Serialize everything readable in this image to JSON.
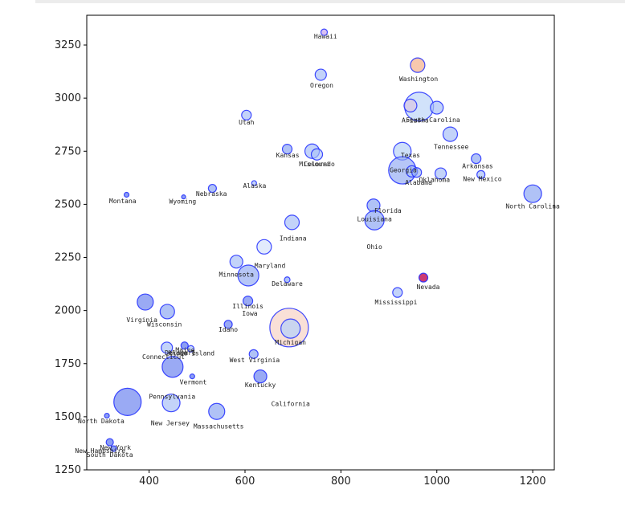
{
  "colors": {
    "axis": "#000000",
    "bubble_stroke": "#1e2bff"
  },
  "chart_data": {
    "type": "scatter",
    "title": "",
    "xlabel": "",
    "ylabel": "",
    "xlim": [
      270,
      1245
    ],
    "ylim": [
      1250,
      3390
    ],
    "xticks": [
      400,
      600,
      800,
      1000,
      1200
    ],
    "yticks": [
      1250,
      1500,
      1750,
      2000,
      2250,
      2500,
      2750,
      3000,
      3250
    ],
    "grid": false,
    "points": [
      {
        "x": 765,
        "y": 3310,
        "r": 4,
        "fill": "#c9a6ee",
        "opacity": 0.7
      },
      {
        "x": 960,
        "y": 3155,
        "r": 9,
        "fill": "#f4b08a",
        "opacity": 0.7
      },
      {
        "x": 758,
        "y": 3110,
        "r": 7,
        "fill": "#a9c1f7",
        "opacity": 0.7
      },
      {
        "x": 963,
        "y": 2960,
        "r": 18,
        "fill": "#b8d2f7",
        "opacity": 0.65
      },
      {
        "x": 945,
        "y": 2965,
        "r": 8,
        "fill": "#d8c1e0",
        "opacity": 0.6
      },
      {
        "x": 1000,
        "y": 2955,
        "r": 8,
        "fill": "#a9c1f7",
        "opacity": 0.7
      },
      {
        "x": 603,
        "y": 2920,
        "r": 6,
        "fill": "#a9c1f7",
        "opacity": 0.7
      },
      {
        "x": 1028,
        "y": 2830,
        "r": 9,
        "fill": "#a9c1f7",
        "opacity": 0.7
      },
      {
        "x": 688,
        "y": 2760,
        "r": 6,
        "fill": "#8fa8f2",
        "opacity": 0.7
      },
      {
        "x": 740,
        "y": 2750,
        "r": 9,
        "fill": "#a9c1f7",
        "opacity": 0.7
      },
      {
        "x": 750,
        "y": 2735,
        "r": 7,
        "fill": "#a9c1f7",
        "opacity": 0.6
      },
      {
        "x": 928,
        "y": 2750,
        "r": 11,
        "fill": "#b8d2f7",
        "opacity": 0.7
      },
      {
        "x": 1082,
        "y": 2715,
        "r": 6,
        "fill": "#8fa8f2",
        "opacity": 0.7
      },
      {
        "x": 928,
        "y": 2660,
        "r": 17,
        "fill": "#8fa8f2",
        "opacity": 0.65
      },
      {
        "x": 948,
        "y": 2655,
        "r": 7,
        "fill": "#a9c1f7",
        "opacity": 0.6
      },
      {
        "x": 958,
        "y": 2650,
        "r": 6,
        "fill": "#8fa8f2",
        "opacity": 0.6
      },
      {
        "x": 1008,
        "y": 2645,
        "r": 7,
        "fill": "#a9c1f7",
        "opacity": 0.7
      },
      {
        "x": 1092,
        "y": 2640,
        "r": 5,
        "fill": "#a9c1f7",
        "opacity": 0.7
      },
      {
        "x": 619,
        "y": 2600,
        "r": 3,
        "fill": "#a9c1f7",
        "opacity": 0.7
      },
      {
        "x": 532,
        "y": 2575,
        "r": 5,
        "fill": "#8fa8f2",
        "opacity": 0.7
      },
      {
        "x": 1200,
        "y": 2550,
        "r": 11,
        "fill": "#8fa8f2",
        "opacity": 0.7
      },
      {
        "x": 353,
        "y": 2545,
        "r": 3,
        "fill": "#6f86ef",
        "opacity": 0.8
      },
      {
        "x": 472,
        "y": 2535,
        "r": 2.5,
        "fill": "#6f86ef",
        "opacity": 0.8
      },
      {
        "x": 868,
        "y": 2495,
        "r": 8,
        "fill": "#8fa8f2",
        "opacity": 0.7
      },
      {
        "x": 870,
        "y": 2425,
        "r": 12,
        "fill": "#8fa8f2",
        "opacity": 0.7
      },
      {
        "x": 698,
        "y": 2415,
        "r": 9,
        "fill": "#a9c1f7",
        "opacity": 0.7
      },
      {
        "x": 640,
        "y": 2300,
        "r": 9,
        "fill": "#d6e2fb",
        "opacity": 0.7
      },
      {
        "x": 582,
        "y": 2230,
        "r": 8,
        "fill": "#a9c1f7",
        "opacity": 0.7
      },
      {
        "x": 607,
        "y": 2165,
        "r": 13,
        "fill": "#8fa8f2",
        "opacity": 0.65
      },
      {
        "x": 688,
        "y": 2145,
        "r": 3.5,
        "fill": "#8fa8f2",
        "opacity": 0.7
      },
      {
        "x": 972,
        "y": 2155,
        "r": 5.5,
        "fill": "#c2185b",
        "opacity": 0.85
      },
      {
        "x": 918,
        "y": 2085,
        "r": 6,
        "fill": "#a9c1f7",
        "opacity": 0.7
      },
      {
        "x": 392,
        "y": 2040,
        "r": 10,
        "fill": "#6f86ef",
        "opacity": 0.7
      },
      {
        "x": 606,
        "y": 2045,
        "r": 6,
        "fill": "#6f86ef",
        "opacity": 0.7
      },
      {
        "x": 438,
        "y": 1995,
        "r": 9,
        "fill": "#8fa8f2",
        "opacity": 0.7
      },
      {
        "x": 692,
        "y": 1920,
        "r": 24,
        "fill": "#f6d3c6",
        "opacity": 0.7
      },
      {
        "x": 695,
        "y": 1915,
        "r": 12,
        "fill": "#b8d2f7",
        "opacity": 0.75
      },
      {
        "x": 565,
        "y": 1935,
        "r": 5,
        "fill": "#6f86ef",
        "opacity": 0.7
      },
      {
        "x": 437,
        "y": 1825,
        "r": 7,
        "fill": "#a9c1f7",
        "opacity": 0.7
      },
      {
        "x": 474,
        "y": 1835,
        "r": 4.5,
        "fill": "#6f86ef",
        "opacity": 0.8
      },
      {
        "x": 487,
        "y": 1820,
        "r": 4,
        "fill": "#a9c1f7",
        "opacity": 0.7
      },
      {
        "x": 618,
        "y": 1795,
        "r": 5.5,
        "fill": "#8fa8f2",
        "opacity": 0.7
      },
      {
        "x": 449,
        "y": 1735,
        "r": 13,
        "fill": "#6f86ef",
        "opacity": 0.7
      },
      {
        "x": 490,
        "y": 1690,
        "r": 3,
        "fill": "#6f86ef",
        "opacity": 0.8
      },
      {
        "x": 632,
        "y": 1690,
        "r": 8,
        "fill": "#6f86ef",
        "opacity": 0.7
      },
      {
        "x": 355,
        "y": 1570,
        "r": 17,
        "fill": "#6f86ef",
        "opacity": 0.7
      },
      {
        "x": 446,
        "y": 1565,
        "r": 11,
        "fill": "#a9c1f7",
        "opacity": 0.7
      },
      {
        "x": 541,
        "y": 1525,
        "r": 10,
        "fill": "#8fa8f2",
        "opacity": 0.7
      },
      {
        "x": 312,
        "y": 1505,
        "r": 3,
        "fill": "#6f86ef",
        "opacity": 0.8
      },
      {
        "x": 318,
        "y": 1380,
        "r": 4.5,
        "fill": "#6f86ef",
        "opacity": 0.8
      },
      {
        "x": 326,
        "y": 1350,
        "r": 3.5,
        "fill": "#6f86ef",
        "opacity": 0.8
      }
    ],
    "labels": [
      {
        "text": "Hawaii",
        "x": 768,
        "y": 3280
      },
      {
        "text": "Washington",
        "x": 962,
        "y": 3080
      },
      {
        "text": "Oregon",
        "x": 760,
        "y": 3050
      },
      {
        "text": "Utah",
        "x": 603,
        "y": 2875
      },
      {
        "text": "Arizona",
        "x": 955,
        "y": 2885
      },
      {
        "text": "South Carolina",
        "x": 992,
        "y": 2888
      },
      {
        "text": "Tennessee",
        "x": 1030,
        "y": 2760
      },
      {
        "text": "Kansas",
        "x": 689,
        "y": 2720
      },
      {
        "text": "Colorado",
        "x": 755,
        "y": 2680
      },
      {
        "text": "Missouri",
        "x": 745,
        "y": 2680
      },
      {
        "text": "Texas",
        "x": 945,
        "y": 2720
      },
      {
        "text": "Arkansas",
        "x": 1085,
        "y": 2670
      },
      {
        "text": "Georgia",
        "x": 930,
        "y": 2650
      },
      {
        "text": "Oklahoma",
        "x": 995,
        "y": 2605
      },
      {
        "text": "New Mexico",
        "x": 1095,
        "y": 2610
      },
      {
        "text": "Alabama",
        "x": 962,
        "y": 2592
      },
      {
        "text": "Alaska",
        "x": 620,
        "y": 2578
      },
      {
        "text": "Nebraska",
        "x": 530,
        "y": 2540
      },
      {
        "text": "North Carolina",
        "x": 1200,
        "y": 2480
      },
      {
        "text": "Montana",
        "x": 345,
        "y": 2505
      },
      {
        "text": "Wyoming",
        "x": 470,
        "y": 2503
      },
      {
        "text": "Florida",
        "x": 898,
        "y": 2460
      },
      {
        "text": "Louisiana",
        "x": 870,
        "y": 2420
      },
      {
        "text": "Indiana",
        "x": 700,
        "y": 2330
      },
      {
        "text": "Ohio",
        "x": 870,
        "y": 2290
      },
      {
        "text": "Maryland",
        "x": 652,
        "y": 2200
      },
      {
        "text": "Minnesota",
        "x": 582,
        "y": 2160
      },
      {
        "text": "Delaware",
        "x": 688,
        "y": 2115
      },
      {
        "text": "Nevada",
        "x": 982,
        "y": 2100
      },
      {
        "text": "Mississippi",
        "x": 915,
        "y": 2028
      },
      {
        "text": "Illinois",
        "x": 606,
        "y": 2010
      },
      {
        "text": "Iowa",
        "x": 610,
        "y": 1975
      },
      {
        "text": "Virginia",
        "x": 385,
        "y": 1945
      },
      {
        "text": "Wisconsin",
        "x": 432,
        "y": 1925
      },
      {
        "text": "Idaho",
        "x": 565,
        "y": 1900
      },
      {
        "text": "Michigan",
        "x": 695,
        "y": 1840
      },
      {
        "text": "Maine",
        "x": 475,
        "y": 1803
      },
      {
        "text": "Rhode Island",
        "x": 488,
        "y": 1788
      },
      {
        "text": "Delaware",
        "x": 465,
        "y": 1790
      },
      {
        "text": "Connecticut",
        "x": 430,
        "y": 1772
      },
      {
        "text": "West Virginia",
        "x": 620,
        "y": 1757
      },
      {
        "text": "Vermont",
        "x": 492,
        "y": 1652
      },
      {
        "text": "Kentucky",
        "x": 632,
        "y": 1640
      },
      {
        "text": "Pennsylvania",
        "x": 448,
        "y": 1585
      },
      {
        "text": "California",
        "x": 695,
        "y": 1550
      },
      {
        "text": "North Dakota",
        "x": 300,
        "y": 1470
      },
      {
        "text": "New Jersey",
        "x": 444,
        "y": 1460
      },
      {
        "text": "Massachusetts",
        "x": 545,
        "y": 1445
      },
      {
        "text": "New York",
        "x": 330,
        "y": 1345
      },
      {
        "text": "New Hampshire",
        "x": 298,
        "y": 1330
      },
      {
        "text": "South Dakota",
        "x": 318,
        "y": 1310
      }
    ]
  }
}
